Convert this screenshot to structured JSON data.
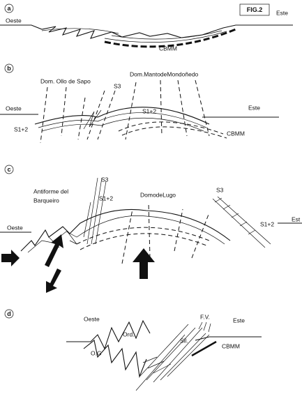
{
  "figure_label": "FIG.2",
  "panels": [
    {
      "label": "a",
      "texts": [
        "Oeste",
        "Este",
        "CBMM"
      ]
    },
    {
      "label": "b",
      "texts": [
        "Dom. Ollo de Sapo",
        "Dom.MantodeMondoñedo",
        "S3",
        "Oeste",
        "S1+2",
        "S1+2",
        "Este",
        "CBMM"
      ]
    },
    {
      "label": "c",
      "texts": [
        "Antiforme del",
        "Barqueiro",
        "S3",
        "S1+2",
        "DomodeLugo",
        "S3",
        "S1+2",
        "Oeste",
        "Est"
      ]
    },
    {
      "label": "d",
      "texts": [
        "Oeste",
        "F.V.",
        "Este",
        "Ord.",
        "O.G",
        "Sil.",
        "CBMM"
      ]
    }
  ]
}
